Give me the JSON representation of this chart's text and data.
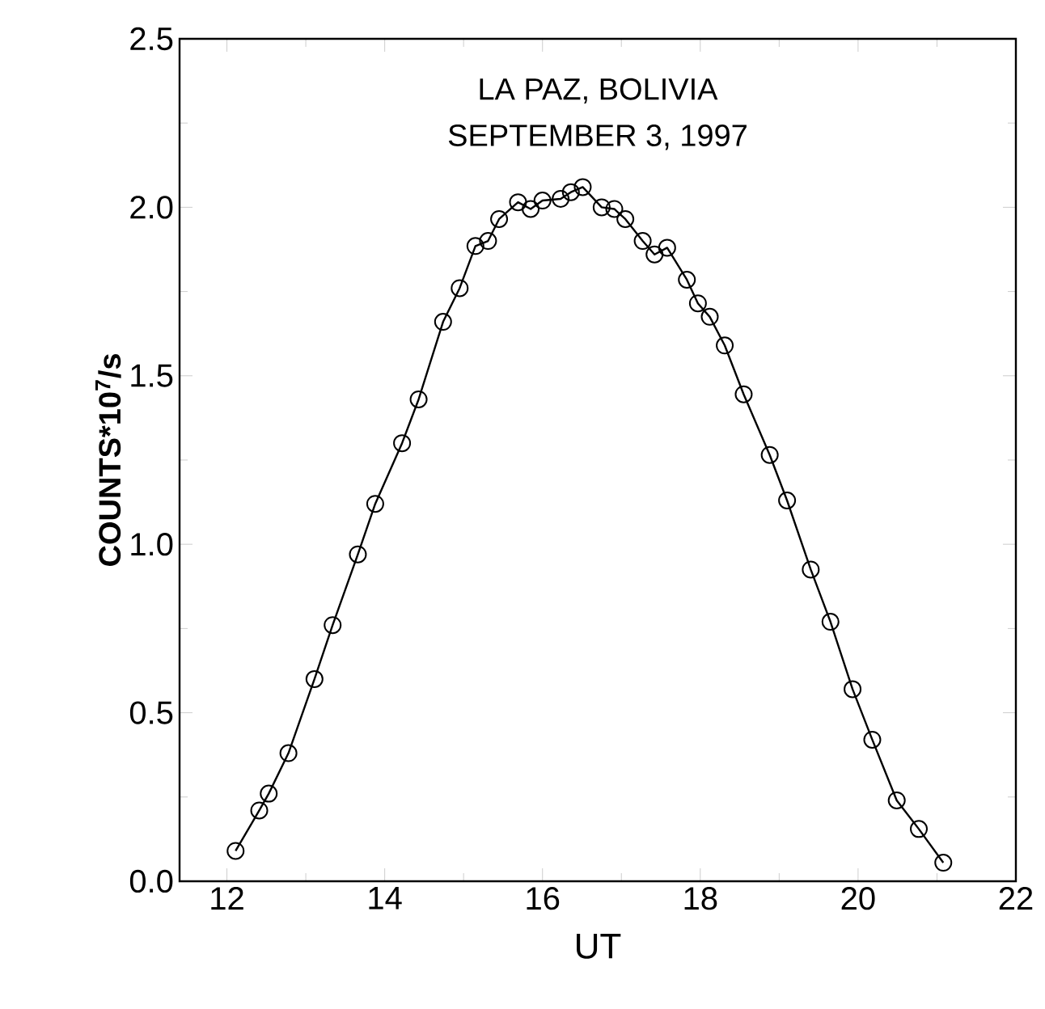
{
  "chart_data": {
    "type": "line",
    "title": "LA PAZ, BOLIVIA",
    "subtitle": "SEPTEMBER 3, 1997",
    "xlabel": "UT",
    "ylabel": "COUNTS*10$^{7}$/s",
    "x": [
      12.11,
      12.41,
      12.53,
      12.78,
      13.11,
      13.34,
      13.66,
      13.88,
      14.22,
      14.43,
      14.74,
      14.95,
      15.15,
      15.31,
      15.45,
      15.69,
      15.85,
      16.0,
      16.23,
      16.36,
      16.51,
      16.75,
      16.91,
      17.05,
      17.27,
      17.42,
      17.58,
      17.83,
      17.97,
      18.12,
      18.31,
      18.55,
      18.88,
      19.1,
      19.4,
      19.65,
      19.93,
      20.18,
      20.49,
      20.77,
      21.08
    ],
    "series": [
      {
        "color": "#000000",
        "values": [
          0.09,
          0.21,
          0.26,
          0.38,
          0.6,
          0.76,
          0.97,
          1.12,
          1.3,
          1.43,
          1.66,
          1.76,
          1.885,
          1.9,
          1.965,
          2.015,
          1.995,
          2.02,
          2.025,
          2.045,
          2.06,
          2.0,
          1.995,
          1.965,
          1.9,
          1.86,
          1.88,
          1.785,
          1.715,
          1.675,
          1.59,
          1.445,
          1.265,
          1.13,
          0.925,
          0.77,
          0.57,
          0.42,
          0.24,
          0.155,
          0.055
        ]
      }
    ],
    "xlim": [
      11.4,
      22
    ],
    "ylim": [
      0,
      2.5
    ],
    "xticks": [
      12,
      14,
      16,
      18,
      20,
      22
    ],
    "yticks": [
      {
        "value": 0,
        "label": "0.0"
      },
      {
        "value": 0.5,
        "label": "0.5"
      },
      {
        "value": 1,
        "label": "1.0"
      },
      {
        "value": 1.5,
        "label": "1.5"
      },
      {
        "value": 2,
        "label": "2.0"
      },
      {
        "value": 2.5,
        "label": "2.5"
      }
    ],
    "marker": "circle",
    "line_style": "solid"
  }
}
